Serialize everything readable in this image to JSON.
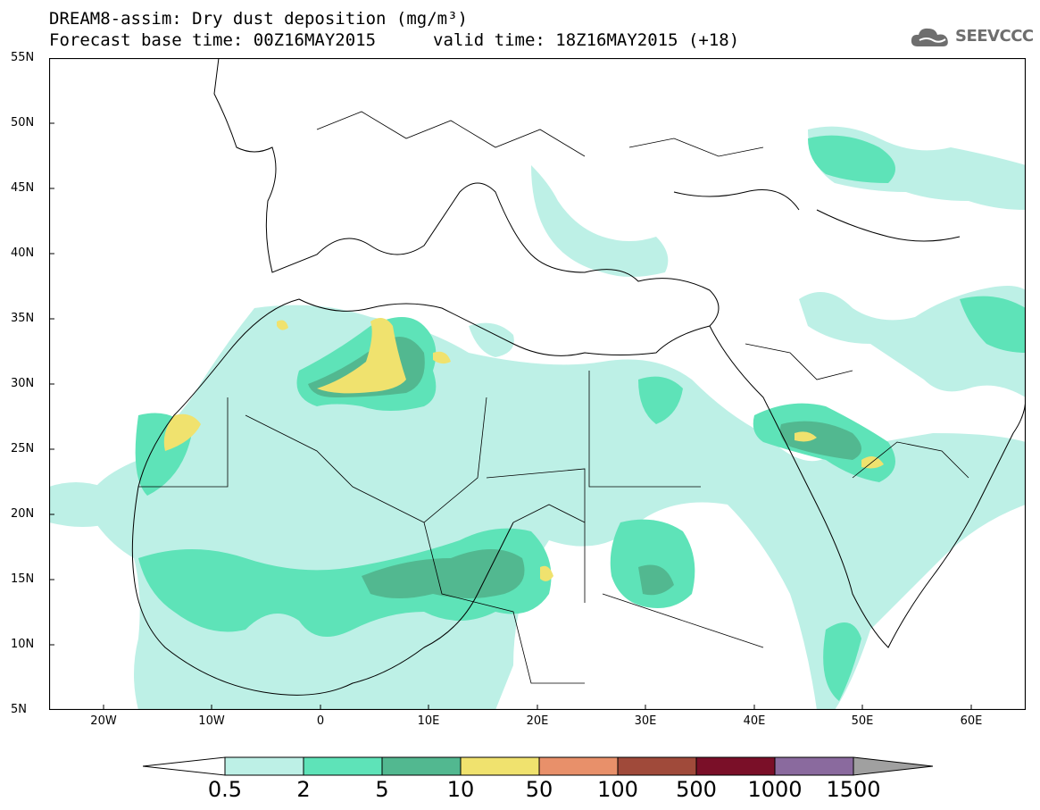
{
  "header": {
    "title": "DREAM8-assim: Dry dust deposition (mg/m³)",
    "base_time": "Forecast base time: 00Z16MAY2015",
    "valid_time": "valid time: 18Z16MAY2015 (+18)",
    "logo_text": "SEEVCCC",
    "logo_icon": "cloud-icon"
  },
  "map": {
    "lat_range": [
      5,
      55
    ],
    "lon_range": [
      -25,
      65
    ],
    "lat_labels": [
      "55N",
      "50N",
      "45N",
      "40N",
      "35N",
      "30N",
      "25N",
      "20N",
      "15N",
      "10N",
      "5N"
    ],
    "lon_labels": [
      "20W",
      "10W",
      "0",
      "10E",
      "20E",
      "30E",
      "40E",
      "50E",
      "60E"
    ],
    "colors": {
      "ocean_land": "#ffffff",
      "border": "#000000"
    }
  },
  "colorbar": {
    "labels": [
      "0.5",
      "2",
      "5",
      "10",
      "50",
      "100",
      "500",
      "1000",
      "1500"
    ],
    "colors": [
      "#ffffff",
      "#bdf0e6",
      "#5ee3b8",
      "#52b890",
      "#f0e26e",
      "#e8906a",
      "#a04a3a",
      "#7a0f28",
      "#8a6a9e",
      "#a0a0a0"
    ]
  }
}
